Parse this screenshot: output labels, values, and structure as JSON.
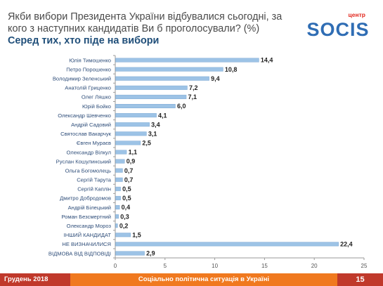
{
  "header": {
    "question": "Якби вибори Президента України відбувалися сьогодні, за кого з наступних кандидатів Ви б проголосували? (%)",
    "subtitle": "Серед тих, хто піде на вибори"
  },
  "logo": {
    "top_text": "центр",
    "main_text": "SOCIS",
    "accent_color": "#e2261c",
    "main_color": "#2f6db4"
  },
  "footer": {
    "date": "Грудень 2018",
    "center_text": "Соціально політична ситуація в Україні",
    "page_number": "15"
  },
  "colors": {
    "bar": "#9dc3e6",
    "bar_stroke": "#7fa9d4",
    "text": "#2f4e7a",
    "value_text": "#222222",
    "axis": "#9a9a9a",
    "footer_orange": "#f0791f",
    "footer_red": "#c0392b"
  },
  "chart_data": {
    "type": "bar",
    "orientation": "horizontal",
    "title": "",
    "xlabel": "",
    "ylabel": "",
    "xlim": [
      0,
      25
    ],
    "x_ticks": [
      0,
      5,
      10,
      15,
      20,
      25
    ],
    "grid": false,
    "categories": [
      "Юлія Тимошенко",
      "Петро Порошенко",
      "Володимир Зеленський",
      "Анатолій Гриценко",
      "Олег Ляшко",
      "Юрій Бойко",
      "Олександр Шевченко",
      "Андрій Садовий",
      "Святослав Вакарчук",
      "Євген Мураєв",
      "Олександр Вілкул",
      "Руслан Кошулинський",
      "Ольга Богомолець",
      "Сергій Тарута",
      "Сергій Каплін",
      "Дмитро Добродомов",
      "Андрій Білецький",
      "Роман Безсмертний",
      "Олександр Мороз",
      "ІНШИЙ КАНДИДАТ",
      "НЕ ВИЗНАЧИЛИСЯ",
      "ВІДМОВА ВІД ВІДПОВІДІ"
    ],
    "values": [
      14.4,
      10.8,
      9.4,
      7.2,
      7.1,
      6.0,
      4.1,
      3.4,
      3.1,
      2.5,
      1.1,
      0.9,
      0.7,
      0.7,
      0.5,
      0.5,
      0.4,
      0.3,
      0.2,
      1.5,
      22.4,
      2.9
    ],
    "value_labels": [
      "14,4",
      "10,8",
      "9,4",
      "7,2",
      "7,1",
      "6,0",
      "4,1",
      "3,4",
      "3,1",
      "2,5",
      "1,1",
      "0,9",
      "0,7",
      "0,7",
      "0,5",
      "0,5",
      "0,4",
      "0,3",
      "0,2",
      "1,5",
      "22,4",
      "2,9"
    ]
  }
}
